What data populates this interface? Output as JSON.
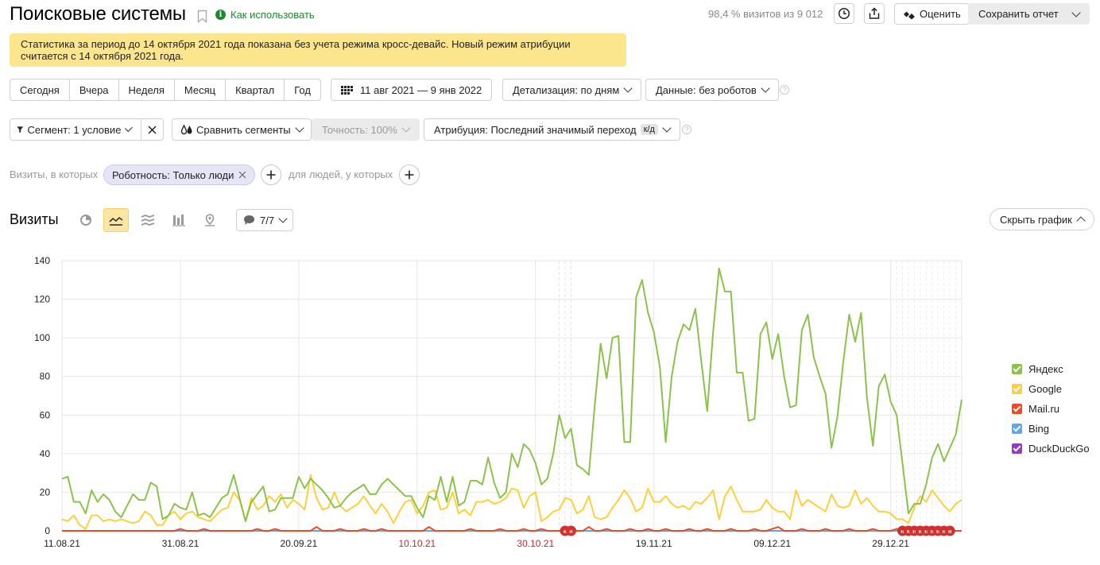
{
  "header": {
    "title": "Поисковые системы",
    "how_to_use": "Как использовать",
    "visits_share": "98,4 % визитов из 9 012",
    "rate_label": "Оценить",
    "save_report_label": "Сохранить отчет"
  },
  "notice": "Статистика за период до 14 октября 2021 года показана без учета режима кросс-девайс. Новый режим атрибуции считается с 14 октября 2021 года.",
  "periods": [
    "Сегодня",
    "Вчера",
    "Неделя",
    "Месяц",
    "Квартал",
    "Год"
  ],
  "date_range": "11 авг 2021 — 9 янв 2022",
  "detail": "Детализация: по дням",
  "data_filter": "Данные: без роботов",
  "segment": "Сегмент: 1 условие",
  "compare_segments": "Сравнить сегменты",
  "accuracy": "Точность: 100%",
  "attribution": "Атрибуция: Последний значимый переход",
  "attribution_badge": "к/д",
  "filter_row": {
    "visits_where": "Визиты, в которых",
    "chip_label": "Роботность: Только люди",
    "people_where": "для людей, у которых"
  },
  "chart_section": {
    "title": "Визиты",
    "notes_label": "7/7",
    "hide_chart_label": "Скрыть график"
  },
  "chart_data": {
    "type": "line",
    "ylim": [
      0,
      140
    ],
    "yticks": [
      0,
      20,
      40,
      60,
      80,
      100,
      120,
      140
    ],
    "x_start": "11.08.21",
    "x_end": "09.01.22",
    "x_tick_labels": [
      {
        "label": "11.08.21",
        "day": 0,
        "holiday": false
      },
      {
        "label": "31.08.21",
        "day": 20,
        "holiday": false
      },
      {
        "label": "20.09.21",
        "day": 40,
        "holiday": false
      },
      {
        "label": "10.10.21",
        "day": 60,
        "holiday": true
      },
      {
        "label": "30.10.21",
        "day": 80,
        "holiday": true
      },
      {
        "label": "19.11.21",
        "day": 100,
        "holiday": false
      },
      {
        "label": "09.12.21",
        "day": 120,
        "holiday": false
      },
      {
        "label": "29.12.21",
        "day": 140,
        "holiday": false
      }
    ],
    "holiday_marker_days": [
      85,
      86,
      142,
      143,
      144,
      145,
      146,
      147,
      148,
      149,
      150
    ],
    "colors": {
      "Яндекс": "#8bc34a",
      "Google": "#fbd03a",
      "Mail.ru": "#f04a24",
      "Bing": "#5aaaf0",
      "DuckDuckGo": "#8f3cc7"
    },
    "series": [
      {
        "name": "Яндекс",
        "values": [
          27,
          28,
          15,
          15,
          9,
          21,
          15,
          19,
          16,
          10,
          7,
          13,
          19,
          16,
          16,
          25,
          23,
          6,
          8,
          14,
          12,
          11,
          20,
          8,
          9,
          7,
          12,
          17,
          19,
          29,
          17,
          5,
          15,
          19,
          23,
          10,
          11,
          17,
          17,
          17,
          28,
          22,
          27,
          24,
          21,
          17,
          12,
          13,
          17,
          20,
          22,
          24,
          19,
          19,
          24,
          27,
          24,
          21,
          18,
          18,
          12,
          7,
          18,
          16,
          28,
          15,
          28,
          13,
          15,
          26,
          26,
          24,
          38,
          25,
          17,
          20,
          40,
          33,
          45,
          42,
          35,
          24,
          27,
          40,
          60,
          48,
          53,
          34,
          32,
          29,
          65,
          97,
          79,
          100,
          101,
          46,
          46,
          121,
          130,
          113,
          103,
          85,
          46,
          80,
          98,
          107,
          104,
          115,
          88,
          62,
          103,
          136,
          124,
          124,
          82,
          82,
          57,
          58,
          102,
          108,
          89,
          102,
          80,
          64,
          65,
          104,
          112,
          90,
          80,
          71,
          43,
          59,
          88,
          112,
          98,
          113,
          69,
          44,
          75,
          81,
          67,
          60,
          35,
          9,
          14,
          14,
          24,
          38,
          45,
          36,
          43,
          50,
          68
        ]
      },
      {
        "name": "Google",
        "values": [
          6,
          5,
          8,
          3,
          1,
          8,
          8,
          5,
          6,
          5,
          6,
          5,
          4,
          5,
          10,
          8,
          3,
          3,
          8,
          10,
          6,
          9,
          10,
          7,
          6,
          5,
          8,
          11,
          12,
          20,
          16,
          5,
          17,
          11,
          13,
          18,
          15,
          19,
          12,
          16,
          14,
          11,
          29,
          17,
          11,
          12,
          20,
          13,
          10,
          12,
          14,
          18,
          13,
          9,
          14,
          10,
          4,
          10,
          15,
          16,
          9,
          13,
          20,
          21,
          11,
          12,
          20,
          9,
          11,
          8,
          15,
          15,
          16,
          14,
          15,
          17,
          22,
          21,
          12,
          18,
          20,
          5,
          7,
          10,
          11,
          17,
          16,
          9,
          11,
          18,
          7,
          6,
          7,
          12,
          16,
          21,
          17,
          10,
          12,
          22,
          15,
          15,
          18,
          14,
          12,
          13,
          11,
          15,
          14,
          17,
          21,
          6,
          18,
          23,
          16,
          10,
          10,
          10,
          11,
          16,
          12,
          10,
          10,
          6,
          21,
          13,
          16,
          14,
          12,
          10,
          19,
          13,
          12,
          13,
          21,
          14,
          17,
          13,
          10,
          10,
          9,
          6,
          6,
          4,
          12,
          18,
          15,
          21,
          17,
          13,
          10,
          14,
          16
        ]
      },
      {
        "name": "Mail.ru",
        "values": [
          0,
          0,
          0,
          0,
          0,
          0,
          0,
          0,
          0,
          0,
          0,
          0,
          0,
          0,
          0,
          0,
          0,
          0,
          0,
          0,
          1,
          0,
          0,
          0,
          1,
          0,
          0,
          0,
          0,
          0,
          0,
          0,
          0,
          1,
          0,
          0,
          1,
          0,
          0,
          0,
          0,
          0,
          0,
          2,
          0,
          0,
          0,
          1,
          0,
          0,
          0,
          1,
          0,
          0,
          1,
          0,
          0,
          0,
          0,
          0,
          0,
          0,
          2,
          0,
          0,
          0,
          0,
          0,
          0,
          1,
          0,
          0,
          0,
          0,
          1,
          0,
          0,
          0,
          1,
          0,
          0,
          1,
          0,
          0,
          0,
          0,
          1,
          0,
          0,
          2,
          0,
          0,
          1,
          0,
          0,
          0,
          1,
          0,
          0,
          1,
          0,
          0,
          1,
          0,
          0,
          0,
          1,
          0,
          0,
          1,
          0,
          0,
          0,
          1,
          0,
          0,
          0,
          1,
          0,
          0,
          1,
          2,
          0,
          0,
          0,
          1,
          0,
          0,
          0,
          1,
          0,
          0,
          0,
          1,
          0,
          0,
          0,
          1,
          0,
          0,
          0,
          1,
          0,
          0,
          0,
          0,
          1,
          0,
          0,
          1,
          0,
          0,
          0
        ]
      },
      {
        "name": "Bing",
        "values": [
          0,
          0,
          0,
          0,
          0,
          0,
          0,
          0,
          0,
          0,
          0,
          0,
          0,
          0,
          0,
          0,
          0,
          0,
          0,
          0,
          0,
          0,
          0,
          0,
          0,
          0,
          0,
          0,
          0,
          0,
          0,
          0,
          0,
          0,
          0,
          0,
          0,
          0,
          0,
          0,
          0,
          0,
          0,
          0,
          0,
          0,
          0,
          0,
          0,
          0,
          0,
          0,
          0,
          0,
          0,
          0,
          0,
          0,
          0,
          0,
          0,
          0,
          0,
          0,
          0,
          0,
          0,
          0,
          0,
          0,
          0,
          0,
          0,
          0,
          0,
          0,
          0,
          0,
          0,
          0,
          0,
          0,
          0,
          0,
          0,
          0,
          0,
          0,
          0,
          0,
          0,
          0,
          0,
          0,
          0,
          0,
          0,
          0,
          0,
          0,
          0,
          0,
          0,
          0,
          0,
          0,
          0,
          0,
          0,
          0,
          0,
          0,
          0,
          0,
          0,
          0,
          0,
          0,
          0,
          0,
          0,
          0,
          0,
          0,
          0,
          0,
          0,
          0,
          0,
          0,
          0,
          0,
          0,
          0,
          0,
          0,
          0,
          0,
          0,
          0,
          0,
          0,
          0,
          0,
          0,
          0,
          0,
          0,
          0,
          0,
          0,
          0,
          0
        ]
      },
      {
        "name": "DuckDuckGo",
        "values": [
          0,
          0,
          0,
          0,
          0,
          0,
          0,
          0,
          0,
          0,
          0,
          0,
          0,
          0,
          0,
          0,
          0,
          0,
          0,
          0,
          0,
          0,
          0,
          0,
          0,
          0,
          0,
          0,
          0,
          0,
          0,
          0,
          0,
          0,
          0,
          0,
          0,
          0,
          0,
          0,
          0,
          0,
          0,
          0,
          0,
          0,
          0,
          0,
          0,
          0,
          0,
          0,
          0,
          0,
          0,
          0,
          0,
          0,
          0,
          0,
          0,
          0,
          0,
          0,
          0,
          0,
          0,
          0,
          0,
          0,
          0,
          0,
          0,
          0,
          0,
          0,
          0,
          0,
          0,
          0,
          0,
          0,
          0,
          0,
          0,
          0,
          0,
          0,
          0,
          0,
          0,
          0,
          0,
          0,
          0,
          0,
          0,
          0,
          0,
          0,
          0,
          0,
          0,
          0,
          0,
          0,
          0,
          0,
          0,
          0,
          0,
          0,
          0,
          0,
          0,
          0,
          0,
          0,
          0,
          0,
          0,
          0,
          0,
          0,
          0,
          0,
          0,
          0,
          0,
          0,
          0,
          0,
          0,
          0,
          0,
          0,
          0,
          0,
          0,
          0,
          0,
          0,
          0,
          0,
          0,
          0,
          0,
          0,
          0,
          0,
          0,
          0,
          0
        ]
      }
    ]
  }
}
